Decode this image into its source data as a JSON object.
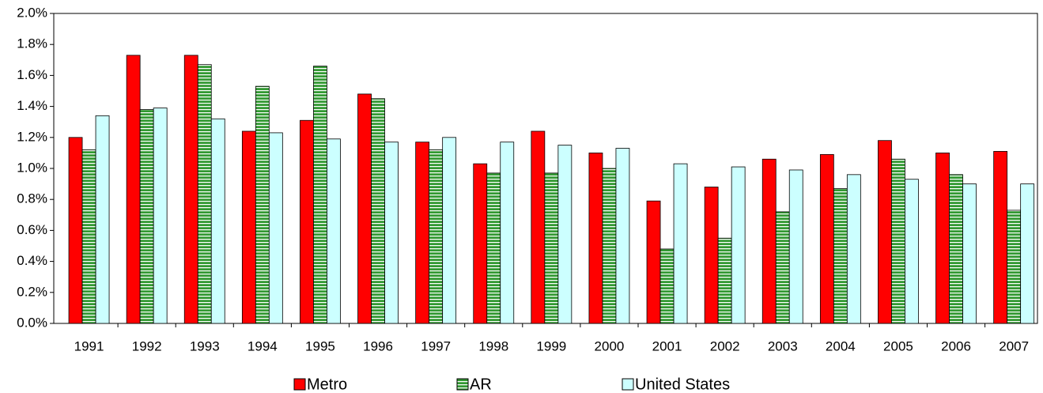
{
  "chart_data": {
    "type": "bar",
    "categories": [
      "1991",
      "1992",
      "1993",
      "1994",
      "1995",
      "1996",
      "1997",
      "1998",
      "1999",
      "2000",
      "2001",
      "2002",
      "2003",
      "2004",
      "2005",
      "2006",
      "2007"
    ],
    "series": [
      {
        "name": "Metro",
        "color": "#ff0000",
        "values": [
          1.2,
          1.73,
          1.73,
          1.24,
          1.31,
          1.48,
          1.17,
          1.03,
          1.24,
          1.1,
          0.79,
          0.88,
          1.06,
          1.09,
          1.18,
          1.1,
          1.11
        ]
      },
      {
        "name": "AR",
        "color": "#339933",
        "values": [
          1.12,
          1.38,
          1.67,
          1.53,
          1.66,
          1.45,
          1.12,
          0.97,
          0.97,
          1.0,
          0.48,
          0.55,
          0.72,
          0.87,
          1.06,
          0.96,
          0.73
        ]
      },
      {
        "name": "United States",
        "color": "#ccffff",
        "values": [
          1.34,
          1.39,
          1.32,
          1.23,
          1.19,
          1.17,
          1.2,
          1.17,
          1.15,
          1.13,
          1.03,
          1.01,
          0.99,
          0.96,
          0.93,
          0.9,
          0.9
        ]
      }
    ],
    "ylim": [
      0,
      2
    ],
    "yticks": [
      {
        "value": 0,
        "label": "0.0%"
      },
      {
        "value": 0.2,
        "label": "0.2%"
      },
      {
        "value": 0.4,
        "label": "0.4%"
      },
      {
        "value": 0.6,
        "label": "0.6%"
      },
      {
        "value": 0.8,
        "label": "0.8%"
      },
      {
        "value": 1.0,
        "label": "1.0%"
      },
      {
        "value": 1.2,
        "label": "1.2%"
      },
      {
        "value": 1.4,
        "label": "1.4%"
      },
      {
        "value": 1.6,
        "label": "1.6%"
      },
      {
        "value": 1.8,
        "label": "1.8%"
      },
      {
        "value": 2.0,
        "label": "2.0%"
      }
    ],
    "legend": "bottom"
  }
}
